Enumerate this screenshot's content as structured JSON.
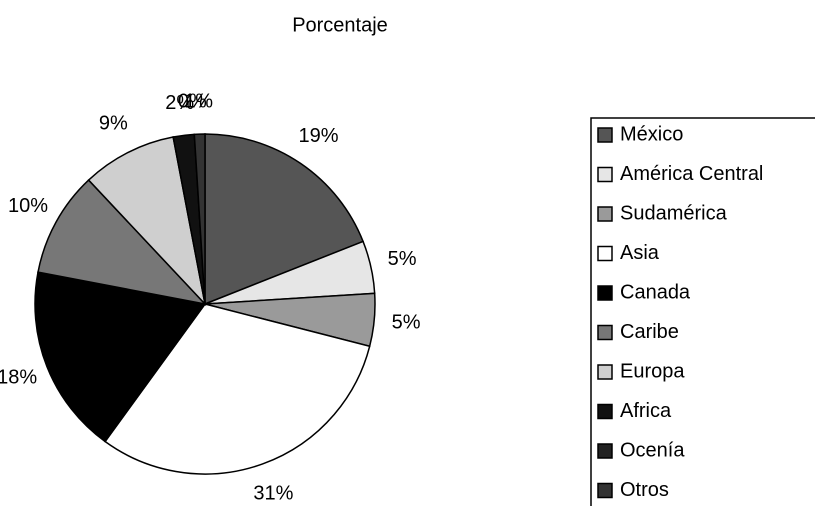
{
  "chart_data": {
    "type": "pie",
    "title": "Porcentaje",
    "categories": [
      "México",
      "América Central",
      "Sudamérica",
      "Asia",
      "Canada",
      "Caribe",
      "Europa",
      "Africa",
      "Ocenía",
      "Otros"
    ],
    "values": [
      19,
      5,
      5,
      31,
      18,
      10,
      9,
      2,
      0,
      1
    ],
    "value_labels": [
      "19%",
      "5%",
      "5%",
      "31%",
      "18%",
      "10%",
      "9%",
      "2%",
      "0%",
      "1%"
    ],
    "colors": [
      "#555555",
      "#e6e6e6",
      "#9a9a9a",
      "#ffffff",
      "#000000",
      "#777777",
      "#cfcfcf",
      "#111111",
      "#222222",
      "#333333"
    ],
    "legend": "right"
  }
}
